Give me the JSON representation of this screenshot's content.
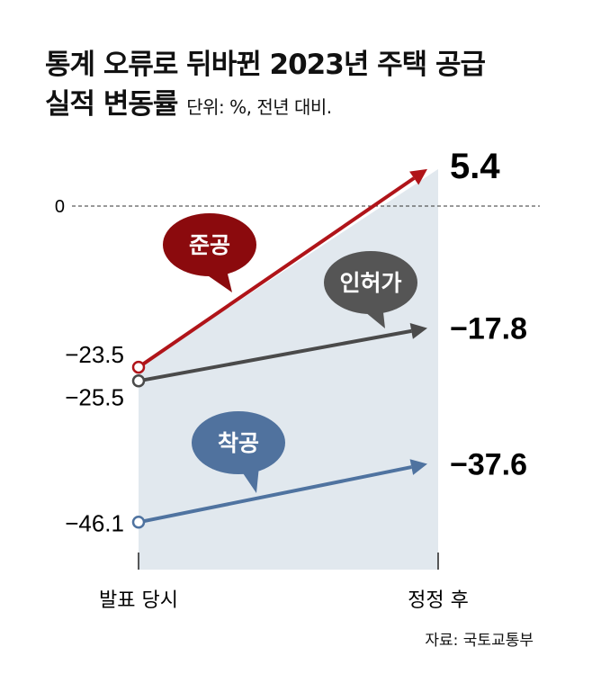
{
  "chart_data": {
    "type": "line",
    "title": "통계 오류로 뒤바뀐 2023년 주택 공급",
    "title_line2": "실적 변동률",
    "unit_note": "단위: %, 전년 대비.",
    "categories": [
      "발표 당시",
      "정정 후"
    ],
    "zero_label": "0",
    "series": [
      {
        "name": "준공",
        "values": [
          -23.5,
          5.4
        ],
        "labels": [
          "−23.5",
          "5.4"
        ],
        "color": "#b01419",
        "bubble_color": "#8b0a0d"
      },
      {
        "name": "인허가",
        "values": [
          -25.5,
          -17.8
        ],
        "labels": [
          "−25.5",
          "−17.8"
        ],
        "color": "#4a4a4a",
        "bubble_color": "#555555"
      },
      {
        "name": "착공",
        "values": [
          -46.1,
          -37.6
        ],
        "labels": [
          "−46.1",
          "−37.6"
        ],
        "color": "#4f73a0",
        "bubble_color": "#50729e"
      }
    ],
    "shade_color": "#e1e8ee",
    "grid": false
  },
  "source": "자료: 국토교통부"
}
